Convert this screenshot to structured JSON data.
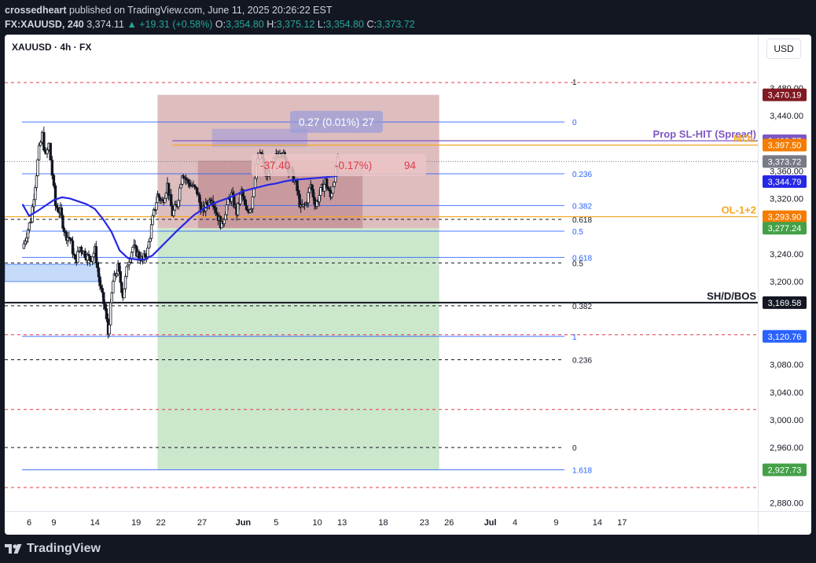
{
  "header": {
    "publisher": "crossedheart",
    "published_text": "published on TradingView.com, June 11, 2025 20:26:22 EST",
    "symbol_line": "FX:XAUUSD, 240",
    "last": "3,374.11",
    "change": "▲ +19.31 (+0.58%)",
    "o_label": "O:",
    "o_val": "3,354.80",
    "h_label": "H:",
    "h_val": "3,375.12",
    "l_label": "L:",
    "l_val": "3,354.80",
    "c_label": "C:",
    "c_val": "3,373.72"
  },
  "chart_title": "XAUUSD · 4h · FX",
  "currency": "USD",
  "footer": {
    "brand": "TradingView"
  },
  "colors": {
    "bg": "#131722",
    "panel": "#ffffff",
    "candle": "#131722",
    "ma": "#2727e6",
    "fib_blue": "#2962ff",
    "red_dash": "#e0394a",
    "orange": "#f5a623",
    "purple": "#7e57c2",
    "loss_zone": "#c99497",
    "profit_zone": "#c8e6c9",
    "demand_zone": "#9fc1f5"
  },
  "chart_data": {
    "type": "candlestick",
    "title": "XAUUSD · 4h · FX",
    "interval": "4h",
    "ylim": [
      2850,
      3505
    ],
    "y_ticks": [
      {
        "v": 3480,
        "label": "3,480.00"
      },
      {
        "v": 3440,
        "label": "3,440.00"
      },
      {
        "v": 3360,
        "label": "3,360.00"
      },
      {
        "v": 3320,
        "label": "3,320.00"
      },
      {
        "v": 3240,
        "label": "3,240.00"
      },
      {
        "v": 3200,
        "label": "3,200.00"
      },
      {
        "v": 3080,
        "label": "3,080.00"
      },
      {
        "v": 3040,
        "label": "3,040.00"
      },
      {
        "v": 3000,
        "label": "3,000.00"
      },
      {
        "v": 2960,
        "label": "2,960.00"
      },
      {
        "v": 2880,
        "label": "2,880.00"
      }
    ],
    "x_ticks": [
      {
        "day": 6,
        "label": "6"
      },
      {
        "day": 9,
        "label": "9"
      },
      {
        "day": 14,
        "label": "14"
      },
      {
        "day": 19,
        "label": "19"
      },
      {
        "day": 22,
        "label": "22"
      },
      {
        "day": 27,
        "label": "27"
      },
      {
        "day": 32,
        "label": "Jun"
      },
      {
        "day": 36,
        "label": "5"
      },
      {
        "day": 41,
        "label": "10"
      },
      {
        "day": 44,
        "label": "13"
      },
      {
        "day": 49,
        "label": "18"
      },
      {
        "day": 54,
        "label": "23"
      },
      {
        "day": 57,
        "label": "26"
      },
      {
        "day": 62,
        "label": "Jul"
      },
      {
        "day": 65,
        "label": "4"
      },
      {
        "day": 70,
        "label": "9"
      },
      {
        "day": 75,
        "label": "14"
      },
      {
        "day": 78,
        "label": "17"
      }
    ],
    "price_path": [
      [
        5.2,
        3248
      ],
      [
        6.2,
        3290
      ],
      [
        6.6,
        3325
      ],
      [
        7.2,
        3390
      ],
      [
        7.6,
        3412
      ],
      [
        8.0,
        3380
      ],
      [
        8.4,
        3398
      ],
      [
        8.8,
        3355
      ],
      [
        9.2,
        3310
      ],
      [
        9.8,
        3300
      ],
      [
        10.4,
        3268
      ],
      [
        11.0,
        3262
      ],
      [
        11.6,
        3228
      ],
      [
        12.2,
        3250
      ],
      [
        12.8,
        3240
      ],
      [
        13.4,
        3232
      ],
      [
        14.0,
        3245
      ],
      [
        14.6,
        3195
      ],
      [
        15.2,
        3160
      ],
      [
        15.6,
        3125
      ],
      [
        16.2,
        3200
      ],
      [
        16.8,
        3220
      ],
      [
        17.4,
        3180
      ],
      [
        18.0,
        3228
      ],
      [
        18.6,
        3250
      ],
      [
        19.2,
        3240
      ],
      [
        19.8,
        3230
      ],
      [
        20.4,
        3245
      ],
      [
        21.0,
        3290
      ],
      [
        21.6,
        3325
      ],
      [
        22.2,
        3315
      ],
      [
        22.8,
        3340
      ],
      [
        23.4,
        3298
      ],
      [
        24.0,
        3312
      ],
      [
        24.6,
        3358
      ],
      [
        25.2,
        3345
      ],
      [
        25.8,
        3338
      ],
      [
        26.4,
        3330
      ],
      [
        27.0,
        3300
      ],
      [
        27.6,
        3312
      ],
      [
        28.2,
        3322
      ],
      [
        28.8,
        3298
      ],
      [
        29.4,
        3280
      ],
      [
        30.0,
        3310
      ],
      [
        30.6,
        3325
      ],
      [
        31.2,
        3300
      ],
      [
        31.8,
        3330
      ],
      [
        32.4,
        3300
      ],
      [
        33.0,
        3310
      ],
      [
        33.6,
        3370
      ],
      [
        34.2,
        3385
      ],
      [
        34.8,
        3350
      ],
      [
        35.4,
        3365
      ],
      [
        36.0,
        3380
      ],
      [
        36.6,
        3392
      ],
      [
        37.2,
        3370
      ],
      [
        37.8,
        3360
      ],
      [
        38.4,
        3340
      ],
      [
        39.0,
        3305
      ],
      [
        39.6,
        3312
      ],
      [
        40.2,
        3340
      ],
      [
        40.8,
        3310
      ],
      [
        41.4,
        3330
      ],
      [
        42.0,
        3345
      ],
      [
        42.6,
        3322
      ],
      [
        43.2,
        3360
      ],
      [
        43.5,
        3374
      ]
    ],
    "moving_average": [
      [
        5.2,
        3312
      ],
      [
        6.0,
        3295
      ],
      [
        7.0,
        3302
      ],
      [
        8.0,
        3310
      ],
      [
        9.0,
        3318
      ],
      [
        10.0,
        3322
      ],
      [
        11.0,
        3320
      ],
      [
        12.0,
        3316
      ],
      [
        13.0,
        3312
      ],
      [
        14.0,
        3305
      ],
      [
        15.0,
        3290
      ],
      [
        16.0,
        3272
      ],
      [
        17.0,
        3245
      ],
      [
        18.0,
        3234
      ],
      [
        19.0,
        3232
      ],
      [
        20.0,
        3232
      ],
      [
        21.0,
        3238
      ],
      [
        22.0,
        3250
      ],
      [
        23.0,
        3262
      ],
      [
        24.0,
        3274
      ],
      [
        25.0,
        3285
      ],
      [
        26.0,
        3296
      ],
      [
        27.0,
        3304
      ],
      [
        28.0,
        3311
      ],
      [
        29.0,
        3316
      ],
      [
        30.0,
        3320
      ],
      [
        31.0,
        3325
      ],
      [
        32.0,
        3331
      ],
      [
        33.0,
        3334
      ],
      [
        34.0,
        3337
      ],
      [
        35.0,
        3340
      ],
      [
        36.0,
        3342
      ],
      [
        37.0,
        3345
      ],
      [
        38.0,
        3347
      ],
      [
        39.0,
        3348
      ],
      [
        40.0,
        3349
      ],
      [
        41.0,
        3350
      ],
      [
        42.0,
        3351
      ],
      [
        43.5,
        3353
      ]
    ],
    "position_tool": {
      "x_start_day": 21.6,
      "x_end_day": 55.8,
      "stop": 3470.19,
      "entry": 3277.24,
      "target": 2927.73,
      "inner_box": {
        "x_start_day": 26.5,
        "x_end_day": 46.5,
        "top": 3375,
        "bottom": 3277.24
      }
    },
    "measure_box": {
      "x_start_day": 28.2,
      "x_end_day": 39.8,
      "top": 3421,
      "bottom": 3395
    },
    "labels": {
      "measure_top": "0.27 (0.01%) 27",
      "measure_bottom_a": "-37.40",
      "measure_bottom_b": "-0.17%)",
      "measure_bottom_c": "94"
    },
    "demand_zone": {
      "x_end_day": 14.4,
      "top": 3225,
      "bottom": 3200
    },
    "hlines": [
      {
        "price": 3169.58,
        "style": "solid-black",
        "label": "SH/D/BOS",
        "tag": "3,169.58"
      },
      {
        "price": 3403.77,
        "style": "solid-purple",
        "label": "Prop SL-HIT (Spread)",
        "tag": "3,403.77"
      },
      {
        "price": 3397.5,
        "style": "solid-orange",
        "label": "MOL",
        "tag": "3,397.50"
      },
      {
        "price": 3293.9,
        "style": "solid-orange",
        "label": "OL-1+2",
        "tag": "3,293.90"
      }
    ],
    "fib_blue": [
      {
        "price": 3431,
        "label": "0"
      },
      {
        "price": 3356,
        "label": "0.236"
      },
      {
        "price": 3310,
        "label": "0.382"
      },
      {
        "price": 3273,
        "label": "0.5"
      },
      {
        "price": 3235,
        "label": "0.618"
      },
      {
        "price": 3120.76,
        "label": "1"
      },
      {
        "price": 2927.73,
        "label": "1.618"
      }
    ],
    "fib_black_dashed": [
      {
        "price": 3290,
        "label": "0.618"
      },
      {
        "price": 3227,
        "label": "0.5"
      },
      {
        "price": 3165,
        "label": "0.382"
      },
      {
        "price": 3087,
        "label": "0.236"
      },
      {
        "price": 2960,
        "label": "0"
      }
    ],
    "red_dashed": [
      3488,
      3123,
      3015,
      2902
    ],
    "price_tags": [
      {
        "price": 3470.19,
        "label": "3,470.19",
        "color": "#801922"
      },
      {
        "price": 3403.77,
        "label": "3,403.77",
        "color": "#7e57c2"
      },
      {
        "price": 3397.5,
        "label": "3,397.50",
        "color": "#f57c00"
      },
      {
        "price": 3373.72,
        "label": "3,373.72",
        "color": "#787b86"
      },
      {
        "price": 3344.79,
        "label": "3,344.79",
        "color": "#2727e6"
      },
      {
        "price": 3293.9,
        "label": "3,293.90",
        "color": "#f57c00"
      },
      {
        "price": 3277.24,
        "label": "3,277.24",
        "color": "#43a047"
      },
      {
        "price": 3169.58,
        "label": "3,169.58",
        "color": "#131722"
      },
      {
        "price": 3120.76,
        "label": "3,120.76",
        "color": "#2962ff"
      },
      {
        "price": 2927.73,
        "label": "2,927.73",
        "color": "#43a047"
      }
    ],
    "fib_top_label": "1"
  }
}
